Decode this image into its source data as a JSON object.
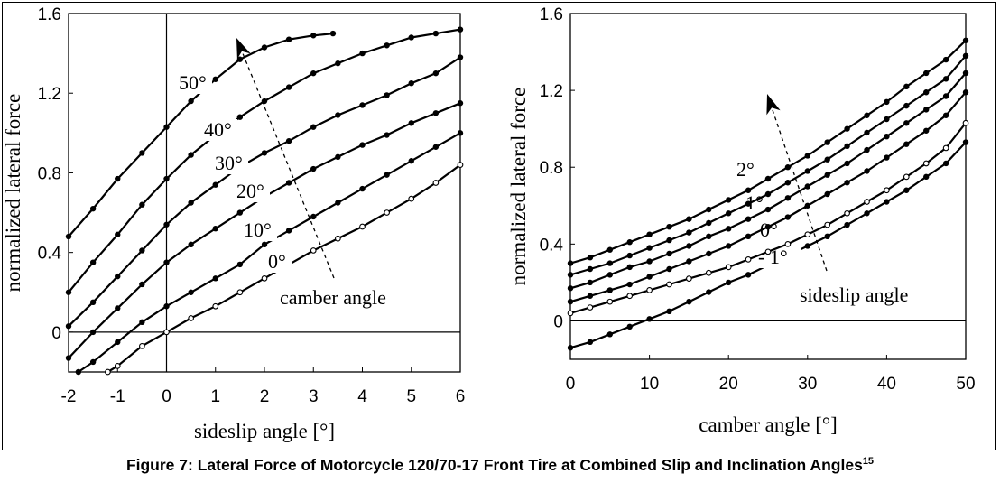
{
  "caption": {
    "text": "Figure 7: Lateral Force of Motorcycle 120/70-17 Front Tire at Combined Slip and Inclination Angles",
    "ref": "15"
  },
  "chart_data": [
    {
      "type": "line",
      "xlabel": "sideslip angle [°]",
      "ylabel": "normalized lateral force",
      "xlim": [
        -2,
        6
      ],
      "ylim": [
        -0.2,
        1.6
      ],
      "xticks": [
        "-2",
        "-1",
        "0",
        "1",
        "2",
        "3",
        "4",
        "5",
        "6"
      ],
      "yticks": [
        "0",
        "0.4",
        "0.8",
        "1.2",
        "1.6"
      ],
      "grid": false,
      "annotation": "camber angle",
      "series": [
        {
          "name": "0°",
          "marker": "open",
          "x": [
            -1.2,
            -1,
            -0.5,
            0,
            0.5,
            1,
            1.5,
            2,
            2.5,
            3,
            3.5,
            4,
            4.5,
            5,
            5.5,
            6
          ],
          "y": [
            -0.2,
            -0.17,
            -0.07,
            0.0,
            0.07,
            0.13,
            0.2,
            0.27,
            0.34,
            0.41,
            0.47,
            0.53,
            0.6,
            0.67,
            0.75,
            0.84
          ]
        },
        {
          "name": "10°",
          "marker": "filled",
          "x": [
            -1.8,
            -1.5,
            -1,
            -0.5,
            0,
            0.5,
            1,
            1.5,
            2,
            2.5,
            3,
            3.5,
            4,
            4.5,
            5,
            5.5,
            6
          ],
          "y": [
            -0.2,
            -0.15,
            -0.05,
            0.05,
            0.13,
            0.2,
            0.27,
            0.34,
            0.44,
            0.51,
            0.58,
            0.65,
            0.72,
            0.79,
            0.86,
            0.93,
            1.0
          ]
        },
        {
          "name": "20°",
          "marker": "filled",
          "x": [
            -2,
            -1.5,
            -1,
            -0.5,
            0,
            0.5,
            1,
            1.5,
            2,
            2.5,
            3,
            3.5,
            4,
            4.5,
            5,
            5.5,
            6
          ],
          "y": [
            -0.13,
            0.0,
            0.12,
            0.24,
            0.35,
            0.44,
            0.52,
            0.6,
            0.68,
            0.75,
            0.82,
            0.88,
            0.94,
            0.99,
            1.05,
            1.1,
            1.15
          ]
        },
        {
          "name": "30°",
          "marker": "filled",
          "x": [
            -2,
            -1.5,
            -1,
            -0.5,
            0,
            0.5,
            1,
            1.5,
            2,
            2.5,
            3,
            3.5,
            4,
            4.5,
            5,
            5.5,
            6
          ],
          "y": [
            0.03,
            0.15,
            0.28,
            0.41,
            0.54,
            0.65,
            0.74,
            0.83,
            0.9,
            0.96,
            1.03,
            1.09,
            1.14,
            1.19,
            1.25,
            1.3,
            1.38
          ]
        },
        {
          "name": "40°",
          "marker": "filled",
          "x": [
            -2,
            -1.5,
            -1,
            -0.5,
            0,
            0.5,
            1,
            1.5,
            2,
            2.5,
            3,
            3.5,
            4,
            4.5,
            5,
            5.5,
            6
          ],
          "y": [
            0.2,
            0.35,
            0.49,
            0.64,
            0.77,
            0.89,
            0.99,
            1.08,
            1.16,
            1.23,
            1.3,
            1.35,
            1.4,
            1.44,
            1.48,
            1.5,
            1.52
          ]
        },
        {
          "name": "50°",
          "marker": "filled",
          "x": [
            -2,
            -1.5,
            -1,
            -0.5,
            0,
            0.5,
            1,
            1.5,
            2,
            2.5,
            3,
            3.4
          ],
          "y": [
            0.48,
            0.62,
            0.77,
            0.9,
            1.03,
            1.16,
            1.27,
            1.37,
            1.43,
            1.47,
            1.49,
            1.5
          ]
        }
      ]
    },
    {
      "type": "line",
      "xlabel": "camber angle [°]",
      "ylabel": "normalized lateral force",
      "xlim": [
        0,
        50
      ],
      "ylim": [
        -0.2,
        1.6
      ],
      "xticks": [
        "0",
        "10",
        "20",
        "30",
        "40",
        "50"
      ],
      "yticks": [
        "0",
        "0.4",
        "0.8",
        "1.2",
        "1.6"
      ],
      "grid": false,
      "annotation": "sideslip angle",
      "series": [
        {
          "name": "- 1°",
          "marker": "filled",
          "x": [
            0,
            2.5,
            5,
            7.5,
            10,
            12.5,
            15,
            17.5,
            20,
            22.5,
            25,
            27.5,
            30,
            32.5,
            35,
            37.5,
            40,
            42.5,
            45,
            47.5,
            50
          ],
          "y": [
            -0.14,
            -0.11,
            -0.07,
            -0.03,
            0.01,
            0.05,
            0.1,
            0.15,
            0.2,
            0.24,
            0.29,
            0.34,
            0.39,
            0.44,
            0.5,
            0.56,
            0.62,
            0.68,
            0.75,
            0.82,
            0.93
          ]
        },
        {
          "name": "0°",
          "marker": "open",
          "x": [
            0,
            2.5,
            5,
            7.5,
            10,
            12.5,
            15,
            17.5,
            20,
            22.5,
            25,
            27.5,
            30,
            32.5,
            35,
            37.5,
            40,
            42.5,
            45,
            47.5,
            50
          ],
          "y": [
            0.04,
            0.07,
            0.1,
            0.13,
            0.16,
            0.19,
            0.22,
            0.25,
            0.28,
            0.32,
            0.36,
            0.4,
            0.45,
            0.5,
            0.56,
            0.62,
            0.68,
            0.75,
            0.82,
            0.9,
            1.03
          ]
        },
        {
          "name": "1°",
          "marker": "filled",
          "x": [
            0,
            2.5,
            5,
            7.5,
            10,
            12.5,
            15,
            17.5,
            20,
            22.5,
            25,
            27.5,
            30,
            32.5,
            35,
            37.5,
            40,
            42.5,
            45,
            47.5,
            50
          ],
          "y": [
            0.1,
            0.13,
            0.16,
            0.19,
            0.23,
            0.27,
            0.31,
            0.35,
            0.39,
            0.44,
            0.49,
            0.54,
            0.6,
            0.66,
            0.72,
            0.78,
            0.85,
            0.92,
            0.99,
            1.07,
            1.19
          ]
        },
        {
          "name": "",
          "marker": "filled",
          "x": [
            0,
            2.5,
            5,
            7.5,
            10,
            12.5,
            15,
            17.5,
            20,
            22.5,
            25,
            27.5,
            30,
            32.5,
            35,
            37.5,
            40,
            42.5,
            45,
            47.5,
            50
          ],
          "y": [
            0.17,
            0.2,
            0.24,
            0.28,
            0.31,
            0.35,
            0.39,
            0.44,
            0.48,
            0.53,
            0.58,
            0.64,
            0.7,
            0.76,
            0.82,
            0.89,
            0.96,
            1.03,
            1.1,
            1.17,
            1.29
          ]
        },
        {
          "name": "2°",
          "marker": "filled",
          "x": [
            0,
            2.5,
            5,
            7.5,
            10,
            12.5,
            15,
            17.5,
            20,
            22.5,
            25,
            27.5,
            30,
            32.5,
            35,
            37.5,
            40,
            42.5,
            45,
            47.5,
            50
          ],
          "y": [
            0.24,
            0.27,
            0.3,
            0.34,
            0.38,
            0.42,
            0.46,
            0.51,
            0.56,
            0.61,
            0.66,
            0.72,
            0.78,
            0.84,
            0.91,
            0.98,
            1.05,
            1.12,
            1.19,
            1.26,
            1.38
          ]
        },
        {
          "name": "",
          "marker": "filled",
          "x": [
            0,
            2.5,
            5,
            7.5,
            10,
            12.5,
            15,
            17.5,
            20,
            22.5,
            25,
            27.5,
            30,
            32.5,
            35,
            37.5,
            40,
            42.5,
            45,
            47.5,
            50
          ],
          "y": [
            0.3,
            0.33,
            0.37,
            0.41,
            0.45,
            0.49,
            0.53,
            0.58,
            0.63,
            0.68,
            0.74,
            0.8,
            0.86,
            0.93,
            1.0,
            1.07,
            1.14,
            1.22,
            1.29,
            1.36,
            1.46
          ]
        }
      ]
    }
  ]
}
